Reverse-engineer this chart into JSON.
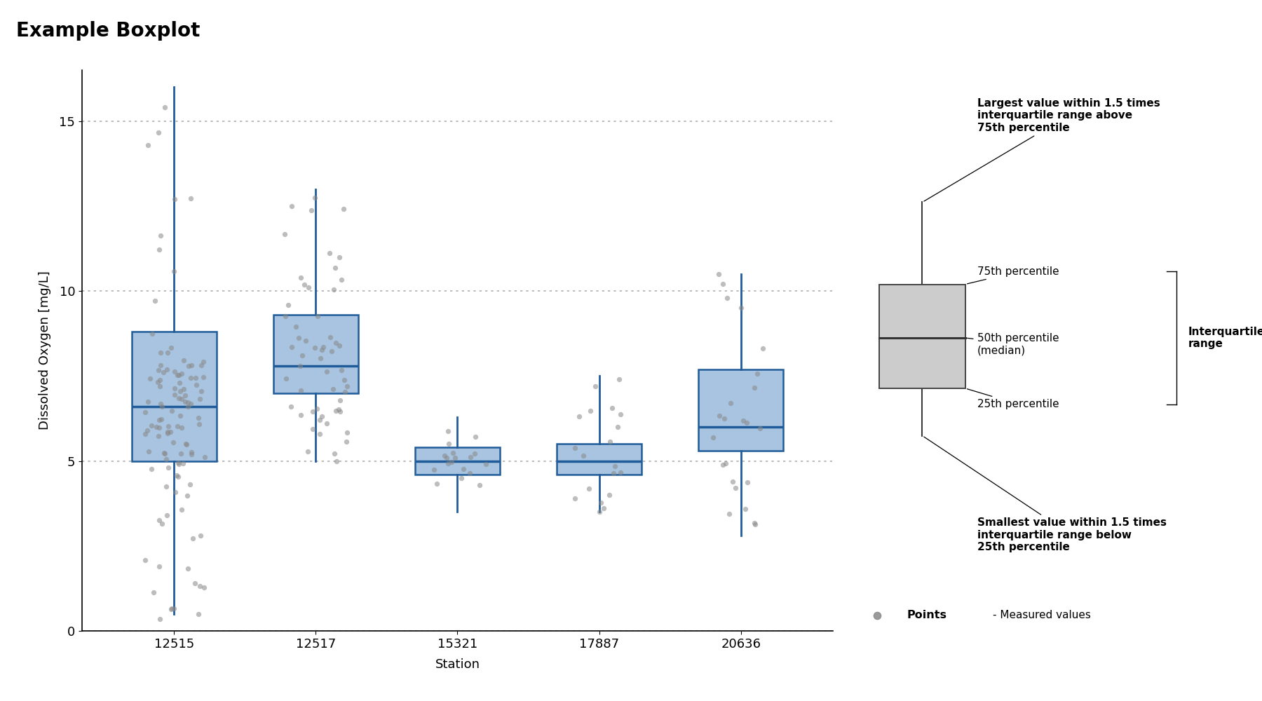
{
  "title": "Example Boxplot",
  "xlabel": "Station",
  "ylabel": "Dissolved Oxygen [mg/L]",
  "stations": [
    "12515",
    "12517",
    "15321",
    "17887",
    "20636"
  ],
  "ylim": [
    0,
    16.5
  ],
  "yticks": [
    0,
    5,
    10,
    15
  ],
  "box_color": "#a8c4e0",
  "box_edge_color": "#1f5c99",
  "median_color": "#1f5c99",
  "whisker_color": "#1f5c99",
  "point_color": "#888888",
  "point_alpha": 0.55,
  "point_size": 28,
  "background_color": "#ffffff",
  "title_fontsize": 20,
  "label_fontsize": 13,
  "tick_fontsize": 13,
  "annotation_fontsize": 11,
  "box_stats": {
    "12515": {
      "q1": 5.0,
      "median": 6.6,
      "q3": 8.8,
      "whislo": 0.5,
      "whishi": 16.0
    },
    "12517": {
      "q1": 7.0,
      "median": 7.8,
      "q3": 9.3,
      "whislo": 5.0,
      "whishi": 13.0
    },
    "15321": {
      "q1": 4.6,
      "median": 5.0,
      "q3": 5.4,
      "whislo": 3.5,
      "whishi": 6.3
    },
    "17887": {
      "q1": 4.6,
      "median": 5.0,
      "q3": 5.5,
      "whislo": 3.5,
      "whishi": 7.5
    },
    "20636": {
      "q1": 5.3,
      "median": 6.0,
      "q3": 7.7,
      "whislo": 2.8,
      "whishi": 10.5
    }
  },
  "annot_upper_bold": "Largest value within 1.5 times\ninterquartile range above\n75th percentile",
  "annot_75": "75th percentile",
  "annot_50": "50th percentile\n(median)",
  "annot_25": "25th percentile",
  "annot_lower_bold": "Smallest value within 1.5 times\ninterquartile range below\n25th percentile",
  "annot_points": "Points",
  "annot_points_desc": "- Measured values"
}
